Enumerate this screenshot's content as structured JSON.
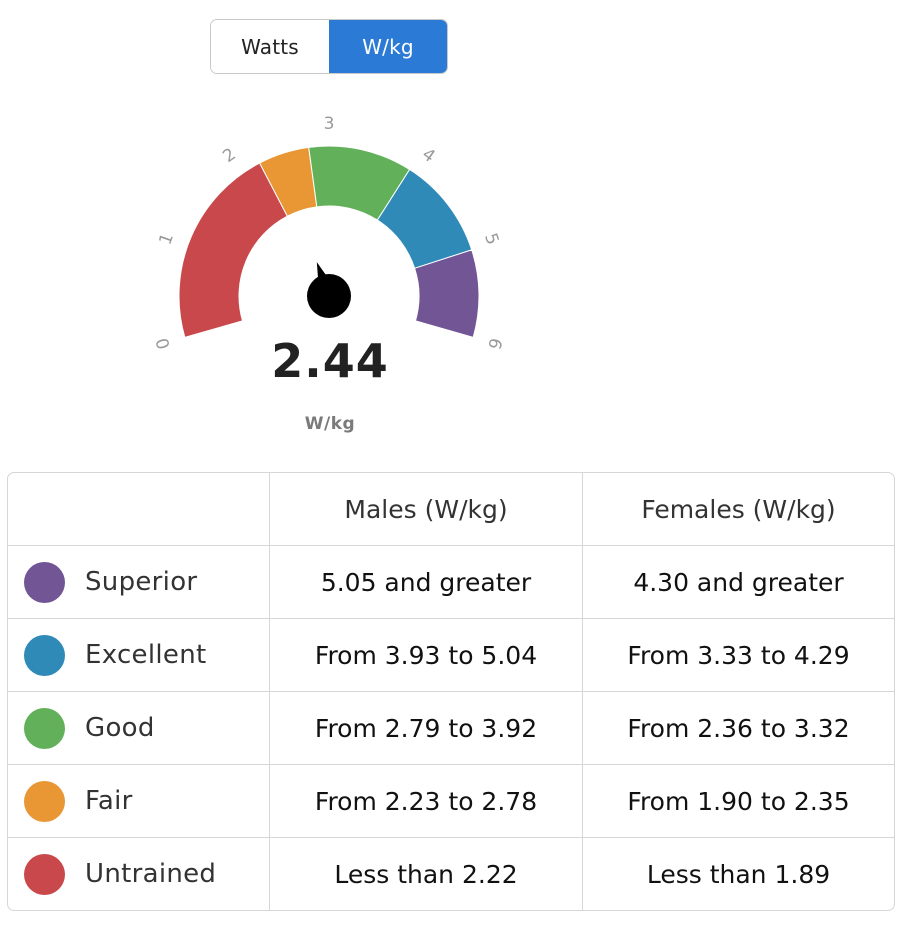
{
  "toggle": {
    "watts_label": "Watts",
    "wkg_label": "W/kg",
    "active": "W/kg"
  },
  "gauge": {
    "min": 0,
    "max": 6,
    "value": 2.44,
    "value_text": "2.44",
    "unit": "W/kg",
    "ticks": [
      "0",
      "1",
      "2",
      "3",
      "4",
      "5",
      "6"
    ],
    "bands": [
      {
        "from": 0,
        "to": 2.22,
        "color": "#c9484b"
      },
      {
        "from": 2.22,
        "to": 2.78,
        "color": "#e89734"
      },
      {
        "from": 2.78,
        "to": 3.92,
        "color": "#62b15a"
      },
      {
        "from": 3.92,
        "to": 5.04,
        "color": "#2f8ab8"
      },
      {
        "from": 5.04,
        "to": 6,
        "color": "#725595"
      }
    ]
  },
  "table": {
    "headers": [
      "",
      "Males (W/kg)",
      "Females (W/kg)"
    ],
    "rows": [
      {
        "level": "Superior",
        "color": "#725595",
        "males": "5.05 and greater",
        "females": "4.30 and greater"
      },
      {
        "level": "Excellent",
        "color": "#2f8ab8",
        "males": "From 3.93 to 5.04",
        "females": "From 3.33 to 4.29"
      },
      {
        "level": "Good",
        "color": "#62b15a",
        "males": "From 2.79 to 3.92",
        "females": "From 2.36 to 3.32"
      },
      {
        "level": "Fair",
        "color": "#e89734",
        "males": "From 2.23 to 2.78",
        "females": "From 1.90 to 2.35"
      },
      {
        "level": "Untrained",
        "color": "#c9484b",
        "males": "Less than 2.22",
        "females": "Less than 1.89"
      }
    ]
  }
}
